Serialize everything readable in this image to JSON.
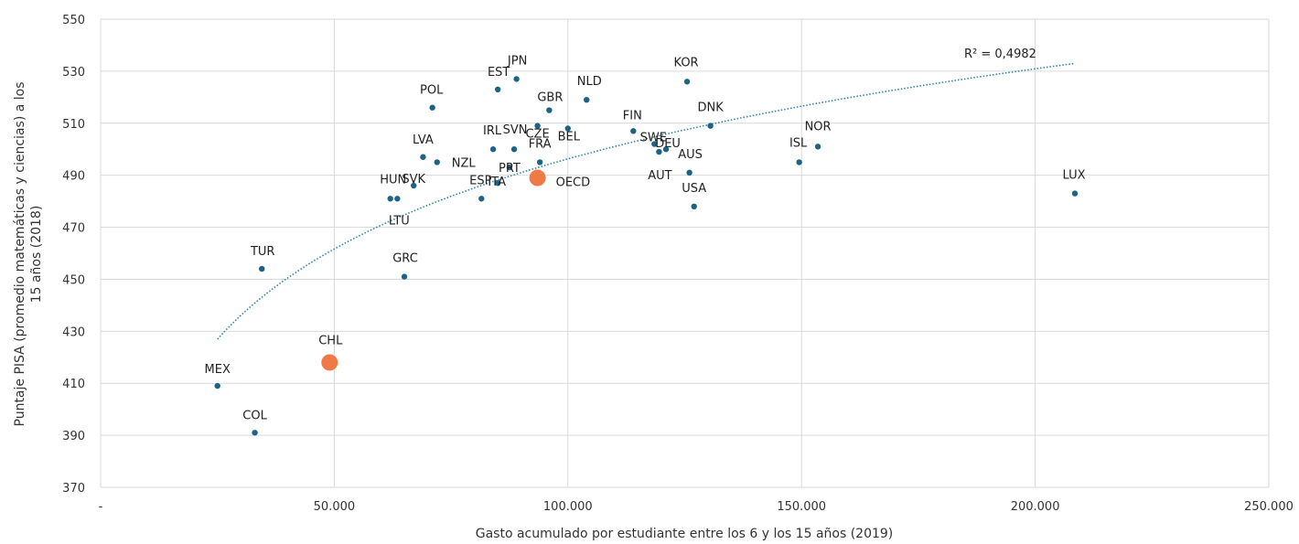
{
  "chart_data": {
    "type": "scatter",
    "xlabel": "Gasto acumulado por estudiante entre los 6 y los 15 años (2019)",
    "ylabel_lines": [
      "Puntaje PISA (promedio matemáticas y ciencias) a los",
      "15 años (2018)"
    ],
    "xlim": [
      0,
      250000
    ],
    "ylim": [
      370,
      550
    ],
    "x_ticks": [
      0,
      50000,
      100000,
      150000,
      200000,
      250000
    ],
    "x_tick_labels": [
      "-",
      "50.000",
      "100.000",
      "150.000",
      "200.000",
      "250.000"
    ],
    "y_ticks": [
      370,
      390,
      410,
      430,
      450,
      470,
      490,
      510,
      530,
      550
    ],
    "y_tick_labels": [
      "370",
      "390",
      "410",
      "430",
      "450",
      "470",
      "490",
      "510",
      "530",
      "550"
    ],
    "grid": true,
    "colors": {
      "country": "#1d6386",
      "highlight": "#f07a46",
      "trend": "#2f86a8"
    },
    "points": [
      {
        "label": "MEX",
        "x": 25000,
        "y": 409,
        "highlight": false
      },
      {
        "label": "COL",
        "x": 33000,
        "y": 391,
        "highlight": false
      },
      {
        "label": "TUR",
        "x": 34500,
        "y": 454,
        "highlight": false
      },
      {
        "label": "CHL",
        "x": 49000,
        "y": 418,
        "highlight": true
      },
      {
        "label": "HUN",
        "x": 62000,
        "y": 481,
        "highlight": false
      },
      {
        "label": "LTU",
        "x": 63500,
        "y": 481,
        "highlight": false
      },
      {
        "label": "GRC",
        "x": 65000,
        "y": 451,
        "highlight": false
      },
      {
        "label": "SVK",
        "x": 67000,
        "y": 486,
        "highlight": false
      },
      {
        "label": "LVA",
        "x": 69000,
        "y": 497,
        "highlight": false
      },
      {
        "label": "POL",
        "x": 71000,
        "y": 516,
        "highlight": false
      },
      {
        "label": "NZL",
        "x": 72000,
        "y": 495,
        "highlight": false
      },
      {
        "label": "ESP",
        "x": 81500,
        "y": 481,
        "highlight": false
      },
      {
        "label": "IRL",
        "x": 84000,
        "y": 500,
        "highlight": false
      },
      {
        "label": "ITA",
        "x": 85000,
        "y": 487,
        "highlight": false
      },
      {
        "label": "EST",
        "x": 85000,
        "y": 523,
        "highlight": false
      },
      {
        "label": "PRT",
        "x": 87500,
        "y": 493,
        "highlight": false
      },
      {
        "label": "SVN",
        "x": 88500,
        "y": 500,
        "highlight": false
      },
      {
        "label": "JPN",
        "x": 89000,
        "y": 527,
        "highlight": false
      },
      {
        "label": "CZE",
        "x": 93500,
        "y": 509,
        "highlight": false
      },
      {
        "label": "FRA",
        "x": 94000,
        "y": 495,
        "highlight": false
      },
      {
        "label": "OECD",
        "x": 93500,
        "y": 489,
        "highlight": true
      },
      {
        "label": "GBR",
        "x": 96000,
        "y": 515,
        "highlight": false
      },
      {
        "label": "BEL",
        "x": 100000,
        "y": 508,
        "highlight": false
      },
      {
        "label": "NLD",
        "x": 104000,
        "y": 519,
        "highlight": false
      },
      {
        "label": "FIN",
        "x": 114000,
        "y": 507,
        "highlight": false
      },
      {
        "label": "SWE",
        "x": 118500,
        "y": 502,
        "highlight": false
      },
      {
        "label": "AUT",
        "x": 119500,
        "y": 499,
        "highlight": false
      },
      {
        "label": "DEU",
        "x": 121000,
        "y": 500,
        "highlight": false
      },
      {
        "label": "KOR",
        "x": 125500,
        "y": 526,
        "highlight": false
      },
      {
        "label": "AUS",
        "x": 126000,
        "y": 491,
        "highlight": false
      },
      {
        "label": "USA",
        "x": 127000,
        "y": 478,
        "highlight": false
      },
      {
        "label": "DNK",
        "x": 130500,
        "y": 509,
        "highlight": false
      },
      {
        "label": "ISL",
        "x": 149500,
        "y": 495,
        "highlight": false
      },
      {
        "label": "NOR",
        "x": 153500,
        "y": 501,
        "highlight": false
      },
      {
        "label": "LUX",
        "x": 208500,
        "y": 483,
        "highlight": false
      }
    ],
    "trendline": {
      "type": "logarithmic",
      "x_from": 25000,
      "x_to": 208500,
      "y_from": 427,
      "y_to": 533
    },
    "annotation": "R² = 0,4982"
  }
}
